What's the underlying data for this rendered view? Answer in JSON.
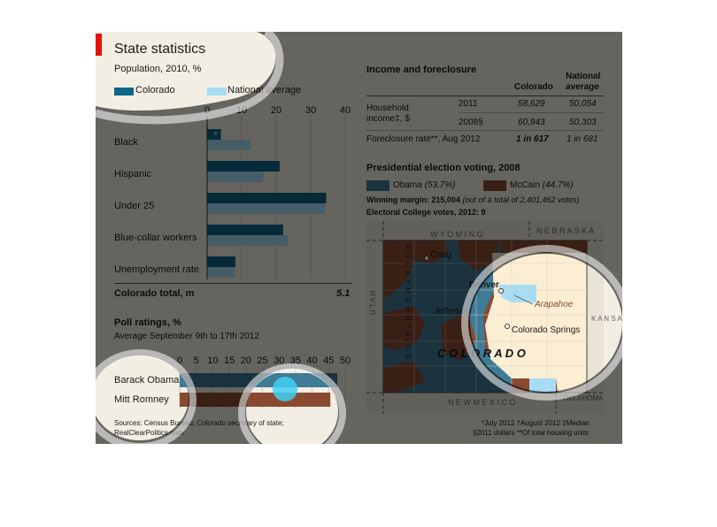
{
  "header": {
    "title": "State statistics"
  },
  "population": {
    "subtitle": "Population, 2010, %",
    "legend": [
      {
        "label": "Colorado",
        "color": "#0e6788"
      },
      {
        "label": "National average",
        "color": "#a7dcf4"
      }
    ],
    "total_label": "Colorado total, m",
    "total_value": "5.1"
  },
  "poll": {
    "title": "Poll ratings, %",
    "subtitle": "Average September 9th to 17th 2012"
  },
  "income": {
    "title": "Income and foreclosure",
    "col_colorado": "Colorado",
    "col_national_1": "National",
    "col_national_2": "average",
    "row1_label_1": "Household",
    "row1_label_2": "income‡, $",
    "row1_year_a": "2011",
    "row1_year_b": "2008§",
    "row1_co_a": "58,629",
    "row1_co_b": "60,943",
    "row1_na_a": "50,054",
    "row1_na_b": "50,303",
    "row2_label": "Foreclosure rate**, Aug 2012",
    "row2_co": "1 in 617",
    "row2_na": "1 in 681"
  },
  "election": {
    "title": "Presidential election voting, 2008",
    "obama_label": "Obama",
    "obama_pct": "(53.7%)",
    "mccain_label": "McCain",
    "mccain_pct": "(44.7%)",
    "margin_label": "Winning margin: 215,004",
    "margin_note": "(out of a total of 2,401,462 votes)",
    "electoral": "Electoral College votes, 2012: 9",
    "obama_color": "#3f7b96",
    "mccain_color": "#8a4a32"
  },
  "map": {
    "state": "C O L O R A D O",
    "wyoming": "W Y O M I N G",
    "nebraska": "N E B R A S K A",
    "kansas": "K A N S A S",
    "utah": "U T A H",
    "new_mexico": "N E W   M E X I C O",
    "oklahoma": "OKLAHOMA",
    "rocky": "R O C K Y   M O U N T A I N S",
    "craig": "Craig",
    "denver": "Denver",
    "jefferson": "Jefferson",
    "arapahoe": "Arapahoe",
    "colorado_springs": "Colorado Springs"
  },
  "footer": {
    "sources_1": "Sources: Census Bureau; Colorado secretary of state;",
    "sources_2": "RealClearPolitics.com",
    "note_1": "*July 2012   †August 2012   ‡Median",
    "note_2": "§2011 dollars   **Of total housing units"
  },
  "chart_data": [
    {
      "type": "bar",
      "title": "Population, 2010, %",
      "categories": [
        "Black",
        "Hispanic",
        "Under 25",
        "Blue-collar workers",
        "Unemployment rate"
      ],
      "series": [
        {
          "name": "Colorado",
          "values": [
            4,
            21,
            34.5,
            22,
            8.2
          ]
        },
        {
          "name": "National average",
          "values": [
            12.6,
            16.3,
            34.2,
            23.5,
            8.1
          ]
        }
      ],
      "annotations": [
        "*",
        "",
        "",
        "",
        ""
      ],
      "xlim": [
        0,
        40
      ],
      "ticks": [
        "0",
        "10",
        "20",
        "30",
        "40"
      ],
      "orientation": "horizontal"
    },
    {
      "type": "bar",
      "title": "Poll ratings, %",
      "categories": [
        "Barack Obama",
        "Mitt Romney"
      ],
      "values": [
        47.6,
        45.5
      ],
      "colors": [
        "#3f7b96",
        "#8a4a32"
      ],
      "xlim": [
        0,
        50
      ],
      "ticks": [
        "0",
        "5",
        "10",
        "15",
        "20",
        "25",
        "30",
        "35",
        "40",
        "45",
        "50"
      ],
      "orientation": "horizontal"
    }
  ]
}
